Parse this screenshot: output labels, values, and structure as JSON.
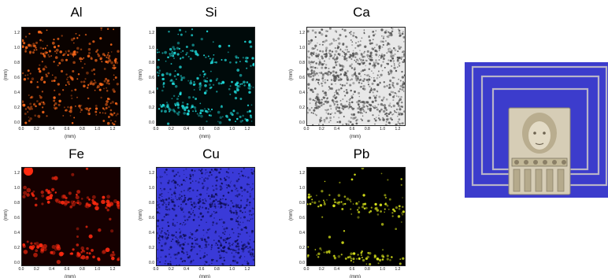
{
  "axis": {
    "xlabel": "(mm)",
    "ylabel": "(mm)",
    "x_ticks": [
      "0.0",
      "0.2",
      "0.4",
      "0.6",
      "0.8",
      "1.0",
      "1.2"
    ],
    "y_ticks": [
      "1.2",
      "1.0",
      "0.8",
      "0.6",
      "0.4",
      "0.2",
      "0.0"
    ]
  },
  "maps": [
    {
      "element": "Al",
      "colors": {
        "bg": "#0a0200",
        "fg": "#ff6a1a"
      }
    },
    {
      "element": "Si",
      "colors": {
        "bg": "#000a0a",
        "fg": "#20e6e6"
      }
    },
    {
      "element": "Ca",
      "colors": {
        "bg": "#e8e8e8",
        "fg": "#505050"
      }
    },
    {
      "element": "Fe",
      "colors": {
        "bg": "#160000",
        "fg": "#ff2a10"
      }
    },
    {
      "element": "Cu",
      "colors": {
        "bg": "#3a3ad8",
        "fg": "#0c0c50"
      }
    },
    {
      "element": "Pb",
      "colors": {
        "bg": "#000000",
        "fg": "#e6f21c"
      }
    }
  ],
  "sample_image": {
    "icon": "relief-sculpture-image",
    "colors": {
      "bg": "#3c3ccc",
      "stone": "#d6cdb6"
    }
  }
}
